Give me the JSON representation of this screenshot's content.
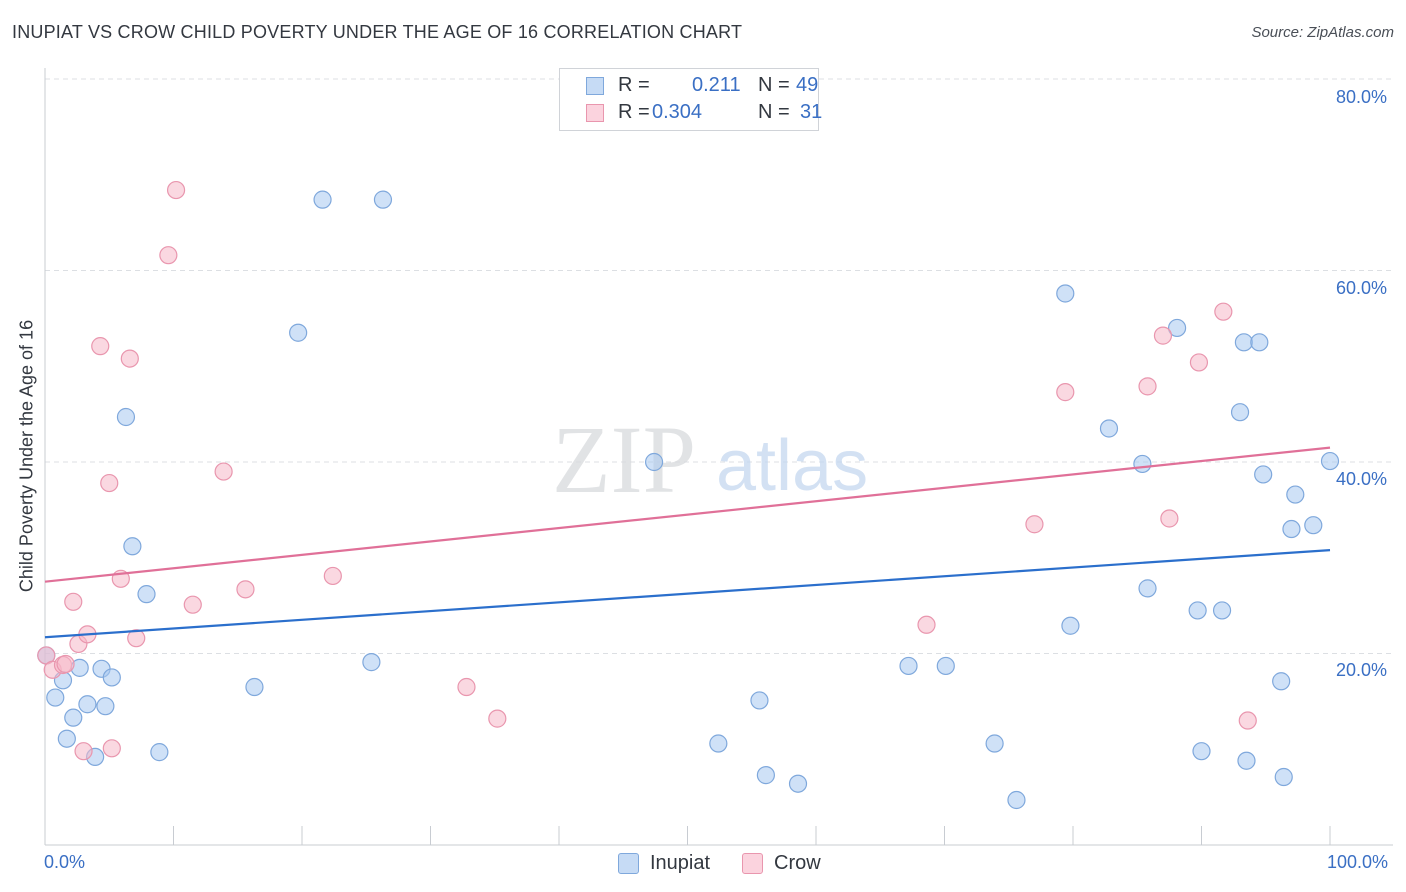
{
  "header": {
    "title": "INUPIAT VS CROW CHILD POVERTY UNDER THE AGE OF 16 CORRELATION CHART",
    "source": "Source: ZipAtlas.com"
  },
  "watermark": {
    "zip": "ZIP",
    "atlas": "atlas"
  },
  "stats_legend": [
    {
      "r_label": "R =",
      "r_value": "0.211",
      "n_label": "N =",
      "n_value": "49",
      "color": "#a8c8f0"
    },
    {
      "r_label": "R =",
      "r_value": "0.304",
      "n_label": "N =",
      "n_value": "31",
      "color": "#f5b8c8"
    }
  ],
  "bottom_legend": [
    {
      "name": "Inupiat",
      "color": "#a8c8f0"
    },
    {
      "name": "Crow",
      "color": "#f5b8c8"
    }
  ],
  "chart_data": {
    "type": "scatter",
    "ylabel": "Child Poverty Under the Age of 16",
    "xlim": [
      0,
      100
    ],
    "ylim": [
      0,
      80
    ],
    "x_tick_labels": [
      "0.0%",
      "100.0%"
    ],
    "y_tick_labels": [
      "20.0%",
      "40.0%",
      "60.0%",
      "80.0%"
    ],
    "y_ticks": [
      20,
      40,
      60,
      80
    ],
    "grid": "horizontal dashed",
    "legend_placement": "top-center",
    "series": [
      {
        "name": "Inupiat",
        "color": "#a8c8f0",
        "stroke": "#7fa8dc",
        "trend_color": "#2b6fcc",
        "trend": [
          [
            0,
            21.7
          ],
          [
            100,
            30.8
          ]
        ],
        "points": [
          [
            0.1,
            19.8
          ],
          [
            0.8,
            15.4
          ],
          [
            1.4,
            17.2
          ],
          [
            1.7,
            11.1
          ],
          [
            2.2,
            13.3
          ],
          [
            2.7,
            18.5
          ],
          [
            3.3,
            14.7
          ],
          [
            3.9,
            9.2
          ],
          [
            4.4,
            18.4
          ],
          [
            4.7,
            14.5
          ],
          [
            5.2,
            17.5
          ],
          [
            6.3,
            44.7
          ],
          [
            6.8,
            31.2
          ],
          [
            7.9,
            26.2
          ],
          [
            8.9,
            9.7
          ],
          [
            16.3,
            16.5
          ],
          [
            19.7,
            53.5
          ],
          [
            21.6,
            67.4
          ],
          [
            25.4,
            19.1
          ],
          [
            26.3,
            67.4
          ],
          [
            47.4,
            40.0
          ],
          [
            52.4,
            10.6
          ],
          [
            55.6,
            15.1
          ],
          [
            56.1,
            7.3
          ],
          [
            58.6,
            6.4
          ],
          [
            67.2,
            18.7
          ],
          [
            70.1,
            18.7
          ],
          [
            73.9,
            10.6
          ],
          [
            75.6,
            4.7
          ],
          [
            79.4,
            57.6
          ],
          [
            79.8,
            22.9
          ],
          [
            82.8,
            43.5
          ],
          [
            85.4,
            39.8
          ],
          [
            85.8,
            26.8
          ],
          [
            88.1,
            54.0
          ],
          [
            89.7,
            24.5
          ],
          [
            90.0,
            9.8
          ],
          [
            91.6,
            24.5
          ],
          [
            93.0,
            45.2
          ],
          [
            93.3,
            52.5
          ],
          [
            93.5,
            8.8
          ],
          [
            94.5,
            52.5
          ],
          [
            94.8,
            38.7
          ],
          [
            96.2,
            17.1
          ],
          [
            96.4,
            7.1
          ],
          [
            97.0,
            33.0
          ],
          [
            97.3,
            36.6
          ],
          [
            98.7,
            33.4
          ],
          [
            100.0,
            40.1
          ]
        ]
      },
      {
        "name": "Crow",
        "color": "#f5b8c8",
        "stroke": "#e996ae",
        "trend_color": "#e07098",
        "trend": [
          [
            0,
            27.5
          ],
          [
            100,
            41.5
          ]
        ],
        "points": [
          [
            0.1,
            19.8
          ],
          [
            0.6,
            18.3
          ],
          [
            1.4,
            18.8
          ],
          [
            1.6,
            18.9
          ],
          [
            2.2,
            25.4
          ],
          [
            2.6,
            21.0
          ],
          [
            3.0,
            9.8
          ],
          [
            3.3,
            22.0
          ],
          [
            4.3,
            52.1
          ],
          [
            5.0,
            37.8
          ],
          [
            5.2,
            10.1
          ],
          [
            5.9,
            27.8
          ],
          [
            6.6,
            50.8
          ],
          [
            7.1,
            21.6
          ],
          [
            9.6,
            61.6
          ],
          [
            10.2,
            68.4
          ],
          [
            11.5,
            25.1
          ],
          [
            13.9,
            39.0
          ],
          [
            15.6,
            26.7
          ],
          [
            22.4,
            28.1
          ],
          [
            32.8,
            16.5
          ],
          [
            35.2,
            13.2
          ],
          [
            68.6,
            23.0
          ],
          [
            77.0,
            33.5
          ],
          [
            79.4,
            47.3
          ],
          [
            85.8,
            47.9
          ],
          [
            87.0,
            53.2
          ],
          [
            87.5,
            34.1
          ],
          [
            89.8,
            50.4
          ],
          [
            91.7,
            55.7
          ],
          [
            93.6,
            13.0
          ]
        ]
      }
    ]
  }
}
